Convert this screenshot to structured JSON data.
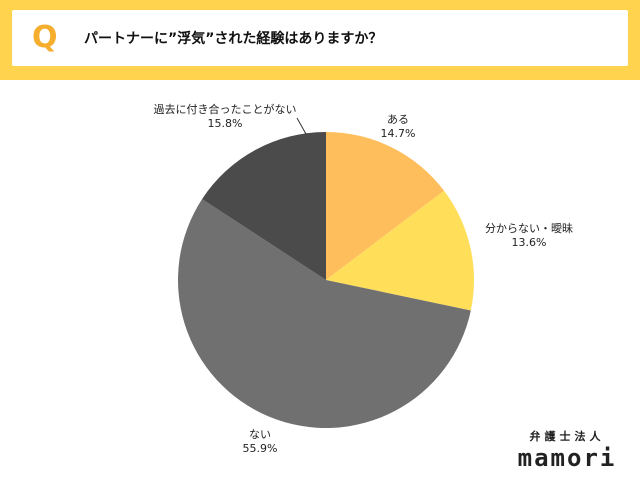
{
  "header": {
    "q_letter": "Q",
    "title": "パートナーに”浮気”された経験はありますか？"
  },
  "chart_data": {
    "type": "pie",
    "title": "パートナーに”浮気”された経験はありますか？",
    "unit": "%",
    "slices": [
      {
        "label": "ある",
        "value": 14.7,
        "value_text": "14.7%",
        "color": "#FFBE5C"
      },
      {
        "label": "分からない・曖昧",
        "value": 13.6,
        "value_text": "13.6%",
        "color": "#FFDF5A"
      },
      {
        "label": "ない",
        "value": 55.9,
        "value_text": "55.9%",
        "color": "#707070"
      },
      {
        "label": "過去に付き合ったことがない",
        "value": 15.8,
        "value_text": "15.8%",
        "color": "#4B4B4B"
      }
    ]
  },
  "brand": {
    "sub": "弁護士法人",
    "main": "mamori"
  },
  "colors": {
    "header_band": "#FFD34D",
    "q_accent": "#F5AE2E"
  }
}
